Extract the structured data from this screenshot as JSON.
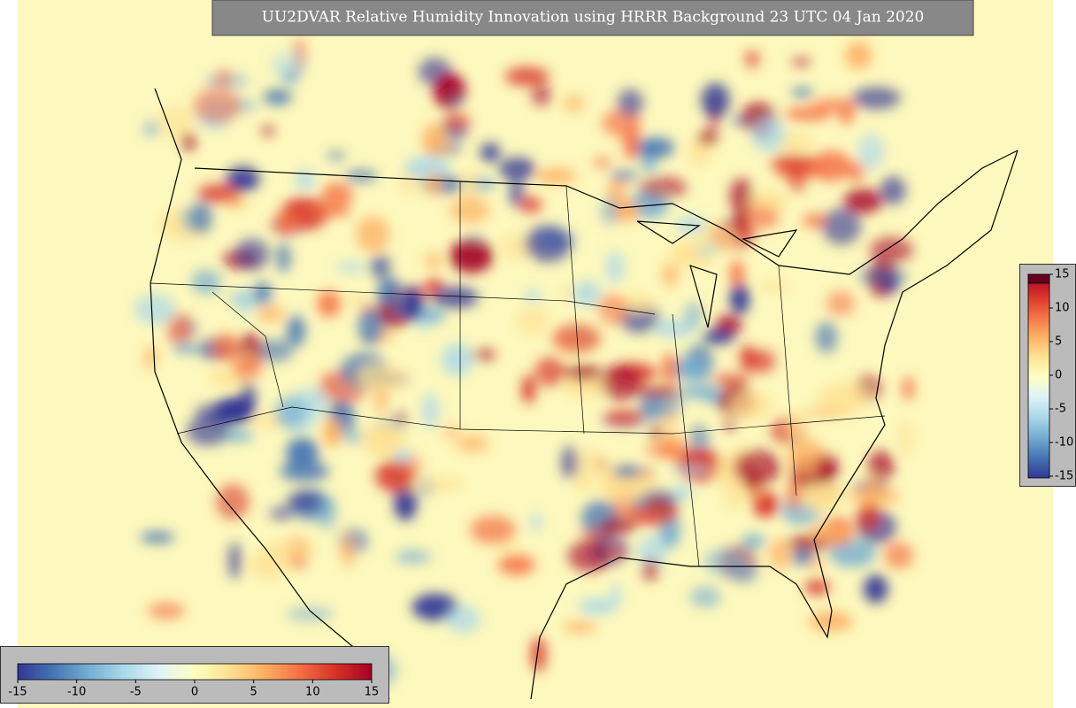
{
  "title": "UU2DVAR Relative Humidity Innovation using HRRR Background 23 UTC 04 Jan 2020",
  "colormap": [
    "#313695",
    "#4575b4",
    "#74add1",
    "#abd9e9",
    "#e0f3f8",
    "#ffffbf",
    "#fee090",
    "#fdae61",
    "#f46d43",
    "#d73027",
    "#a50026"
  ],
  "colorbar_horizontal": {
    "ticks": [
      -15,
      -10,
      -5,
      0,
      5,
      10,
      15
    ]
  },
  "colorbar_vertical": {
    "ticks": [
      15,
      10,
      5,
      0,
      -5,
      -10,
      -15
    ],
    "extend_color": "#67001f"
  }
}
